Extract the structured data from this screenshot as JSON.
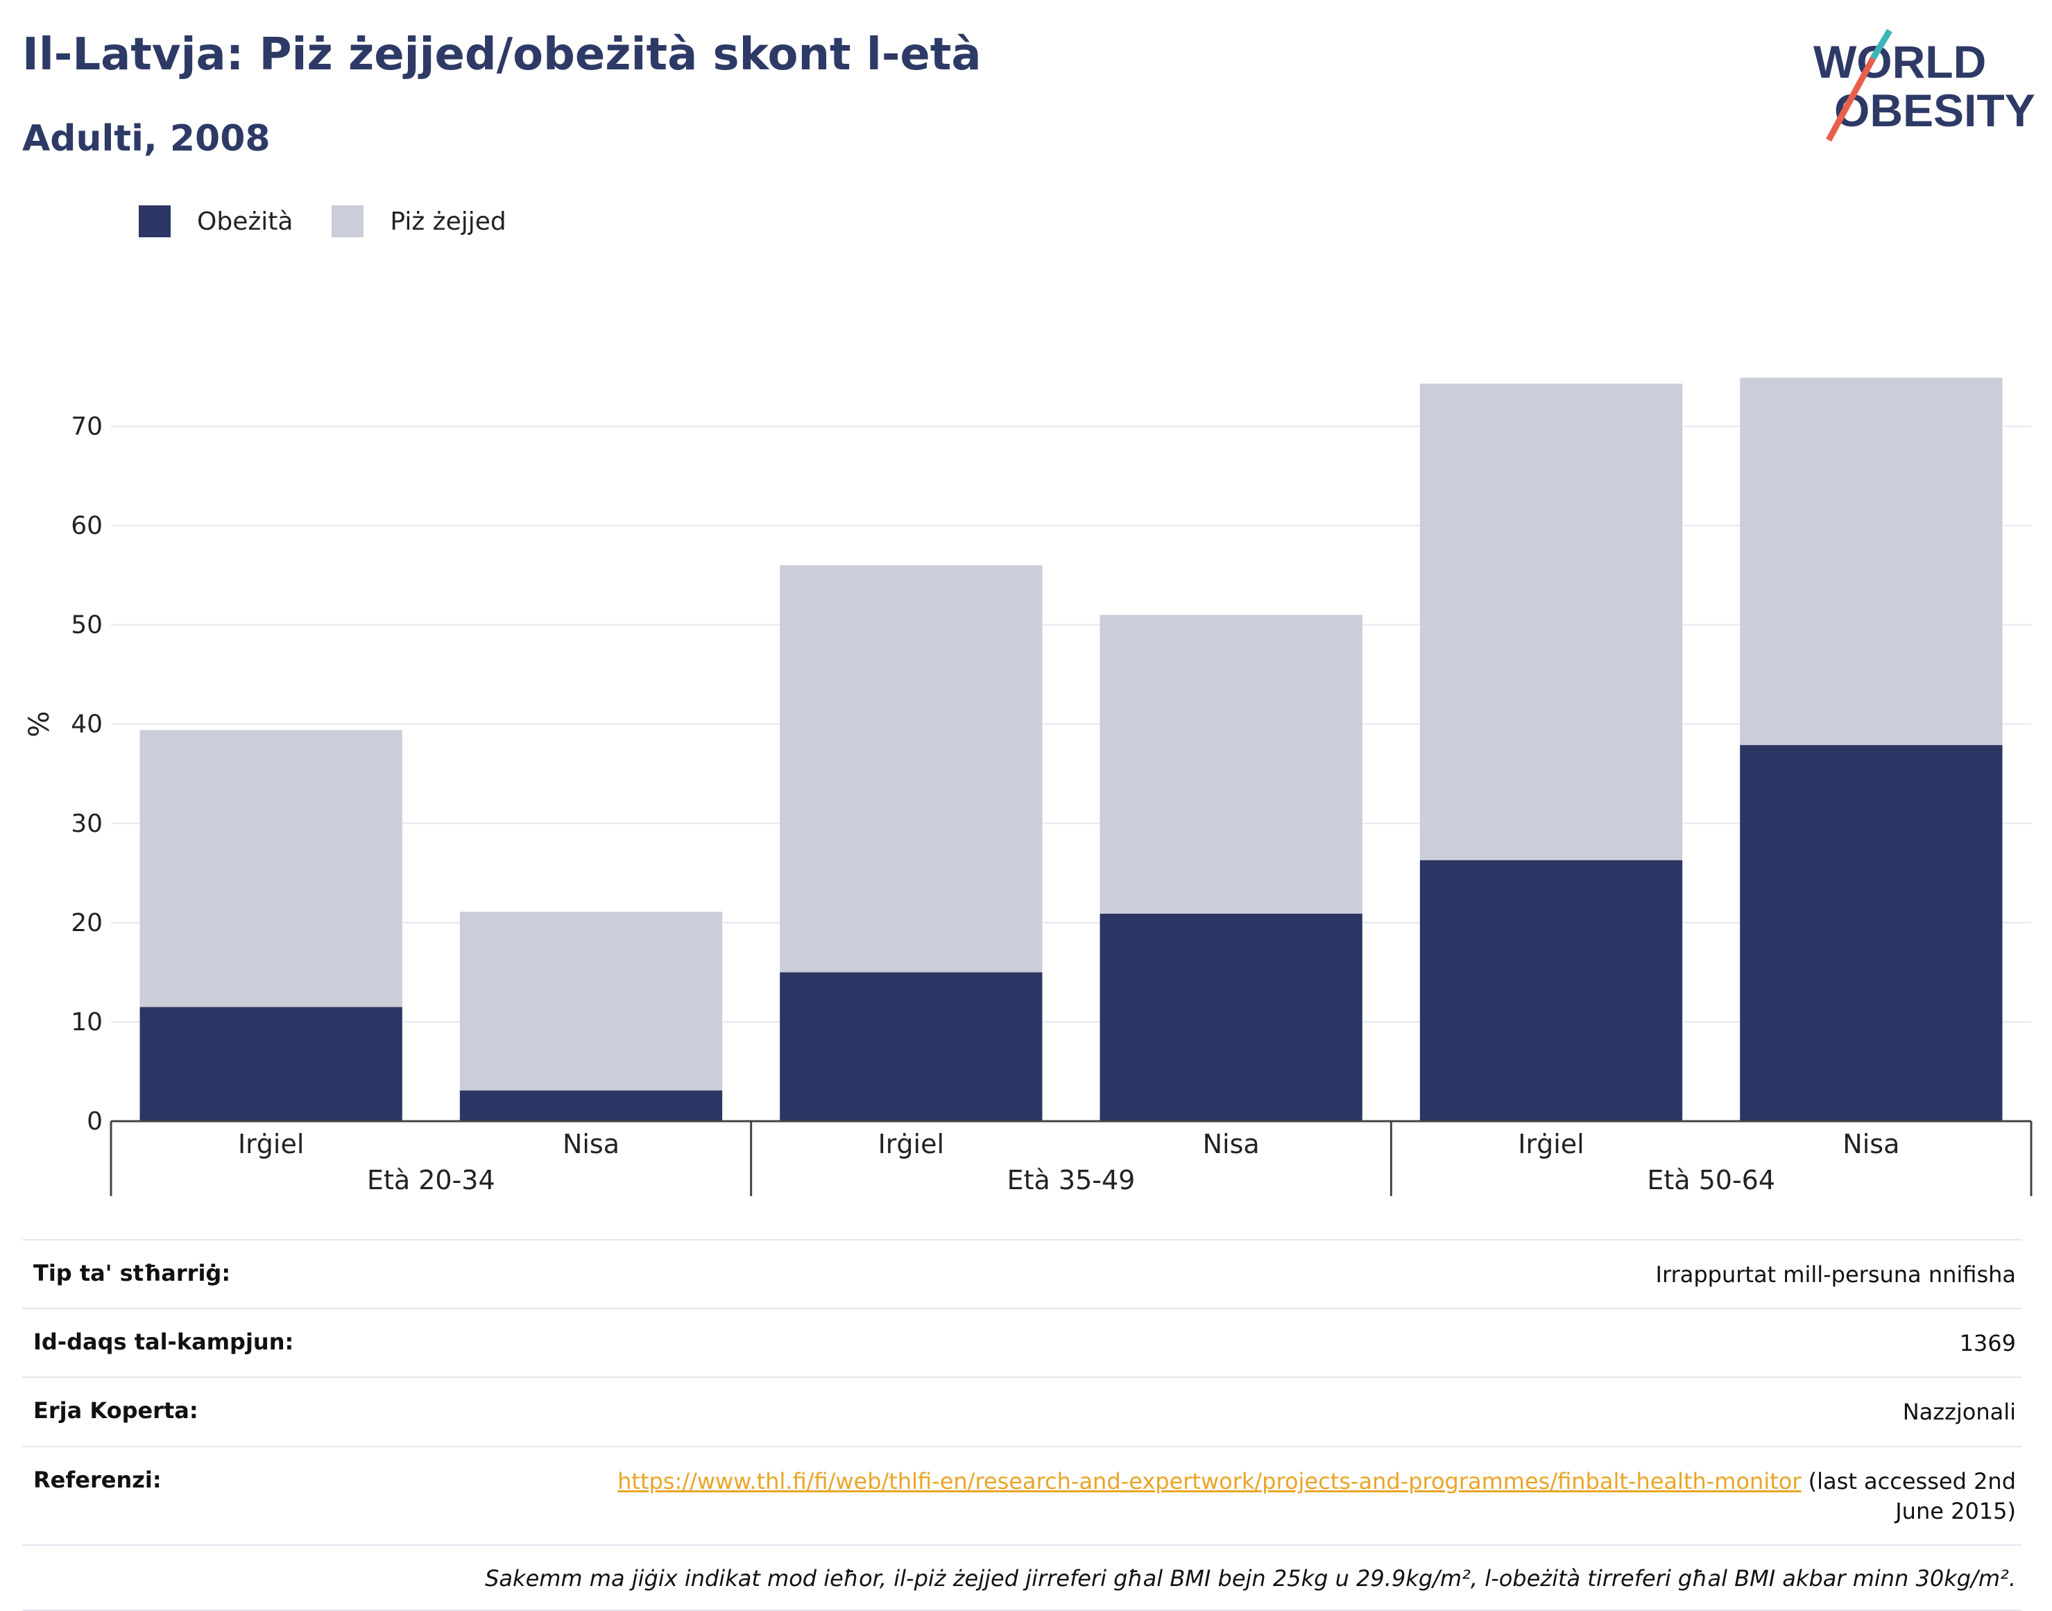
{
  "header": {
    "title": "Il-Latvja: Piż żejjed/obeżità skont l-età",
    "subtitle": "Adulti, 2008"
  },
  "logo": {
    "line1": "WORLD",
    "line2": "OBESITY",
    "accent_teal": "#3ab6b8",
    "accent_red": "#e8604c"
  },
  "legend": [
    {
      "label": "Obeżità",
      "color": "#2b3664"
    },
    {
      "label": "Piż żejjed",
      "color": "#cbcdd9"
    }
  ],
  "chart_data": {
    "type": "bar",
    "stacked": true,
    "ylabel": "%",
    "ylim": [
      0,
      78
    ],
    "yticks": [
      0,
      10,
      20,
      30,
      40,
      50,
      60,
      70
    ],
    "grid": true,
    "legend_position": "top-left",
    "groups": [
      {
        "label": "Età 20-34",
        "categories": [
          "Irġiel",
          "Nisa"
        ]
      },
      {
        "label": "Età 35-49",
        "categories": [
          "Irġiel",
          "Nisa"
        ]
      },
      {
        "label": "Età 50-64",
        "categories": [
          "Irġiel",
          "Nisa"
        ]
      }
    ],
    "series": [
      {
        "name": "Obeżità",
        "color": "#2b3664",
        "values": [
          11.5,
          3.1,
          15.0,
          20.9,
          26.3,
          37.9
        ]
      },
      {
        "name": "Piż żejjed",
        "color": "#cbcdd9",
        "values": [
          27.9,
          18.0,
          41.0,
          30.1,
          48.0,
          37.0
        ]
      }
    ]
  },
  "meta": {
    "rows": [
      {
        "key": "Tip ta' stħarriġ:",
        "value": "Irrappurtat mill-persuna nnifisha"
      },
      {
        "key": "Id-daqs tal-kampjun:",
        "value": "1369"
      },
      {
        "key": "Erja Koperta:",
        "value": "Nazzjonali"
      }
    ],
    "reference": {
      "key": "Referenzi:",
      "link": "https://www.thl.fi/fi/web/thlfi-en/research-and-expertwork/projects-and-programmes/finbalt-health-monitor",
      "suffix": " (last accessed 2nd June 2015)"
    },
    "note": "Sakemm ma jiġix indikat mod ieħor, il-piż żejjed jirreferi għal BMI bejn 25kg u 29.9kg/m², l-obeżità tirreferi għal BMI akbar minn 30kg/m²."
  }
}
